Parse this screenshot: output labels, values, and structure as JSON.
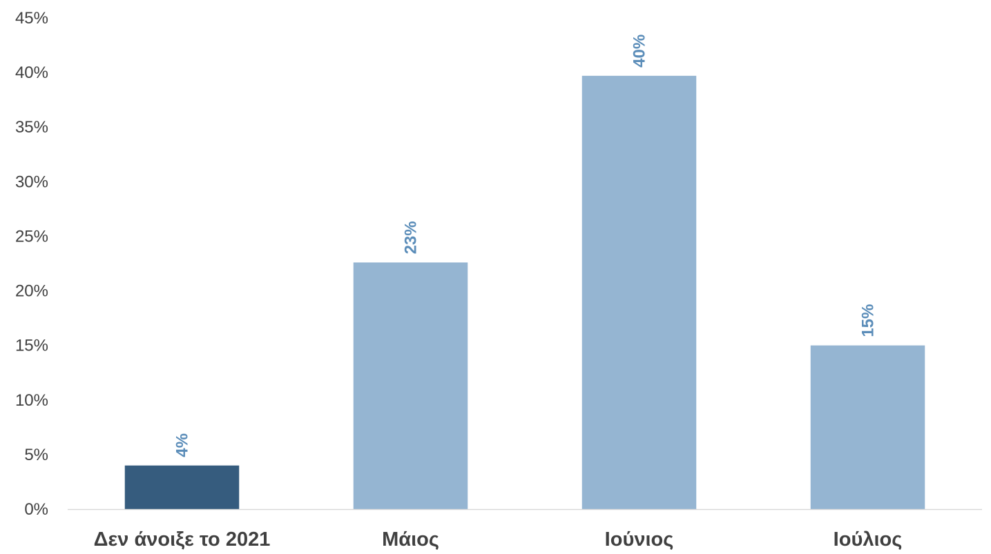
{
  "chart_data": {
    "type": "bar",
    "categories": [
      "Δεν άνοιξε το 2021",
      "Μάιος",
      "Ιούνιος",
      "Ιούλιος"
    ],
    "values": [
      4,
      22.6,
      39.7,
      15
    ],
    "data_labels": [
      "4%",
      "23%",
      "40%",
      "15%"
    ],
    "y_ticks": [
      "0%",
      "5%",
      "10%",
      "15%",
      "20%",
      "25%",
      "30%",
      "35%",
      "40%",
      "45%"
    ],
    "ylim": [
      0,
      45
    ],
    "grid": false,
    "legend": "none",
    "colors": {
      "highlight_bar": "#365C7E",
      "bar": "#95B5D2",
      "data_label": "#5B8DB9",
      "axis": "#D9D9D9",
      "text": "#404040"
    },
    "bar_color_keys": [
      "highlight_bar",
      "bar",
      "bar",
      "bar"
    ]
  }
}
